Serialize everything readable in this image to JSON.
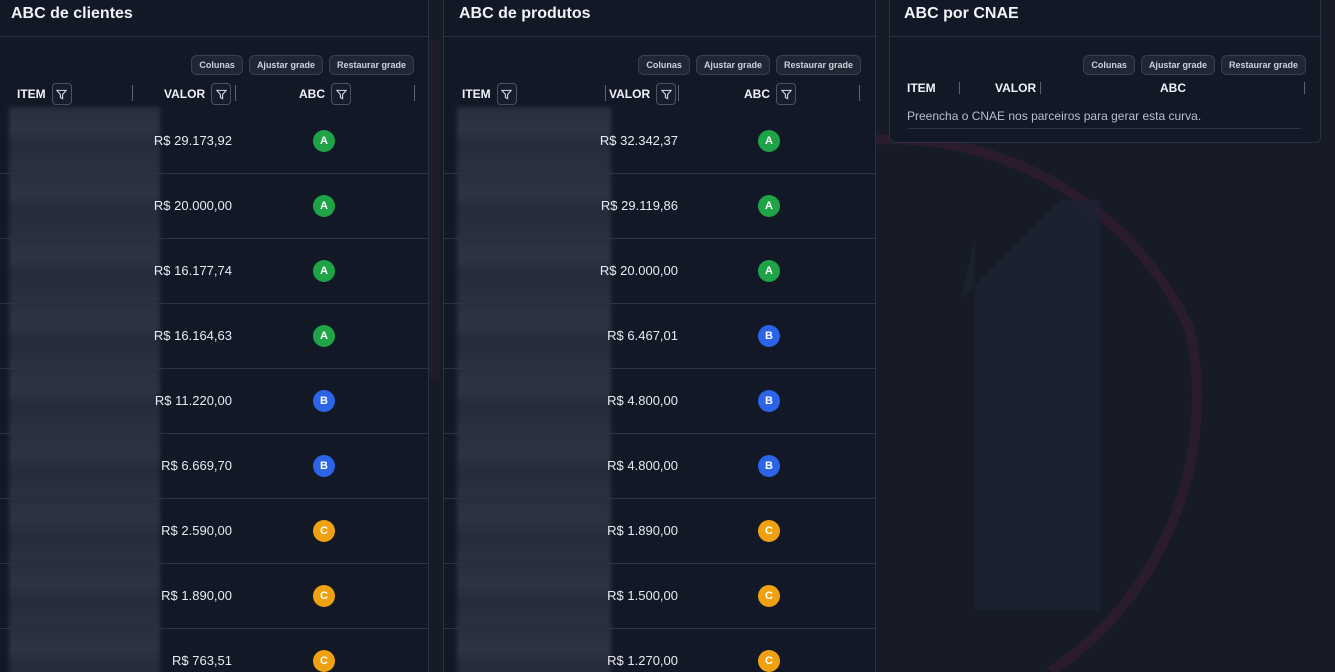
{
  "colors": {
    "badge_a": "#1fa347",
    "badge_b": "#2c64e8",
    "badge_c": "#f0a111"
  },
  "toolbar": {
    "columns_label": "Colunas",
    "fit_label": "Ajustar grade",
    "restore_label": "Restaurar grade"
  },
  "columns": {
    "item": "ITEM",
    "value": "VALOR",
    "abc": "ABC"
  },
  "panels": [
    {
      "title": "ABC de clientes",
      "rows": [
        {
          "value": "R$ 29.173,92",
          "abc": "A"
        },
        {
          "value": "R$ 20.000,00",
          "abc": "A"
        },
        {
          "value": "R$ 16.177,74",
          "abc": "A"
        },
        {
          "value": "R$ 16.164,63",
          "abc": "A"
        },
        {
          "value": "R$ 11.220,00",
          "abc": "B"
        },
        {
          "value": "R$ 6.669,70",
          "abc": "B"
        },
        {
          "value": "R$ 2.590,00",
          "abc": "C"
        },
        {
          "value": "R$ 1.890,00",
          "abc": "C"
        },
        {
          "value": "R$ 763,51",
          "abc": "C"
        }
      ]
    },
    {
      "title": "ABC de produtos",
      "rows": [
        {
          "value": "R$ 32.342,37",
          "abc": "A"
        },
        {
          "value": "R$ 29.119,86",
          "abc": "A"
        },
        {
          "value": "R$ 20.000,00",
          "abc": "A"
        },
        {
          "value": "R$ 6.467,01",
          "abc": "B"
        },
        {
          "value": "R$ 4.800,00",
          "abc": "B"
        },
        {
          "value": "R$ 4.800,00",
          "abc": "B"
        },
        {
          "value": "R$ 1.890,00",
          "abc": "C"
        },
        {
          "value": "R$ 1.500,00",
          "abc": "C"
        },
        {
          "value": "R$ 1.270,00",
          "abc": "C"
        }
      ]
    },
    {
      "title": "ABC por CNAE",
      "empty_message": "Preencha o CNAE nos parceiros para gerar esta curva."
    }
  ]
}
